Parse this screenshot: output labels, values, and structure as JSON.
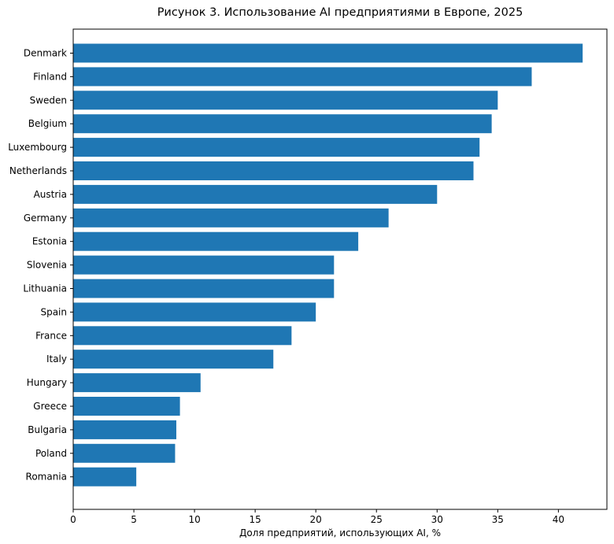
{
  "chart_data": {
    "type": "bar",
    "orientation": "horizontal",
    "title": "Рисунок 3. Использование AI предприятиями в Европе, 2025",
    "xlabel": "Доля предприятий, использующих AI, %",
    "ylabel": "",
    "xlim": [
      0,
      44
    ],
    "xticks": [
      0,
      5,
      10,
      15,
      20,
      25,
      30,
      35,
      40
    ],
    "grid": false,
    "bar_color": "#1f77b4",
    "categories": [
      "Denmark",
      "Finland",
      "Sweden",
      "Belgium",
      "Luxembourg",
      "Netherlands",
      "Austria",
      "Germany",
      "Estonia",
      "Slovenia",
      "Lithuania",
      "Spain",
      "France",
      "Italy",
      "Hungary",
      "Greece",
      "Bulgaria",
      "Poland",
      "Romania"
    ],
    "values": [
      42.0,
      37.8,
      35.0,
      34.5,
      33.5,
      33.0,
      30.0,
      26.0,
      23.5,
      21.5,
      21.5,
      20.0,
      18.0,
      16.5,
      10.5,
      8.8,
      8.5,
      8.4,
      5.2
    ]
  }
}
